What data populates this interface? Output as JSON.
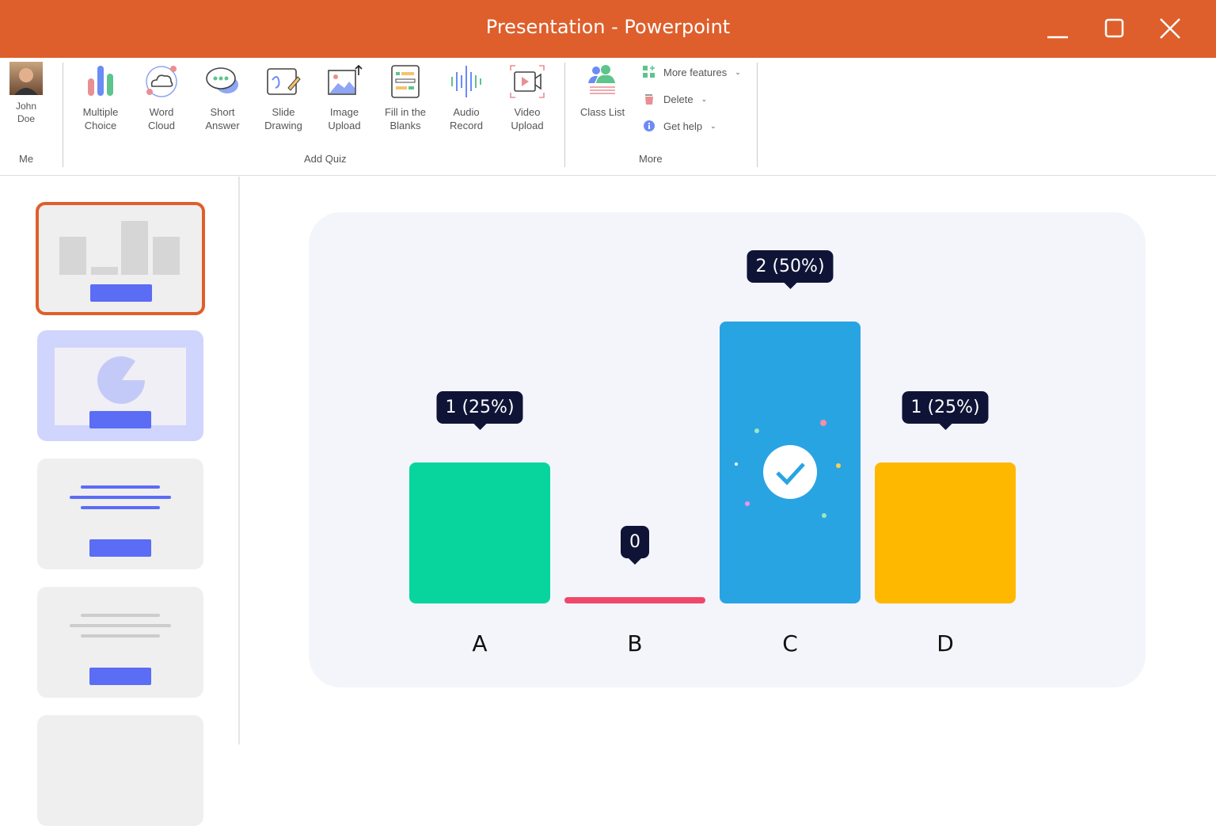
{
  "window": {
    "title": "Presentation - Powerpoint"
  },
  "ribbon": {
    "user": {
      "name_line1": "John",
      "name_line2": "Doe",
      "group": "Me"
    },
    "add_quiz": {
      "group": "Add Quiz",
      "tools": [
        {
          "l1": "Multiple",
          "l2": "Choice",
          "icon": "bar-chart-icon"
        },
        {
          "l1": "Word",
          "l2": "Cloud",
          "icon": "cloud-icon"
        },
        {
          "l1": "Short",
          "l2": "Answer",
          "icon": "chat-bubble-icon"
        },
        {
          "l1": "Slide",
          "l2": "Drawing",
          "icon": "drawing-icon"
        },
        {
          "l1": "Image",
          "l2": "Upload",
          "icon": "image-upload-icon"
        },
        {
          "l1": "Fill in the",
          "l2": "Blanks",
          "icon": "fill-blanks-icon"
        },
        {
          "l1": "Audio",
          "l2": "Record",
          "icon": "audio-wave-icon"
        },
        {
          "l1": "Video",
          "l2": "Upload",
          "icon": "video-icon"
        }
      ]
    },
    "more": {
      "group": "More",
      "class_list": "Class List",
      "more_features": "More features",
      "delete": "Delete",
      "get_help": "Get help"
    }
  },
  "chart_data": {
    "type": "bar",
    "categories": [
      "A",
      "B",
      "C",
      "D"
    ],
    "values": [
      1,
      0,
      2,
      1
    ],
    "labels": [
      "1 (25%)",
      "0",
      "2 (50%)",
      "1 (25%)"
    ],
    "colors": [
      "#08D59E",
      "#F0476B",
      "#29A4E3",
      "#FFB800"
    ],
    "correct": "C"
  }
}
